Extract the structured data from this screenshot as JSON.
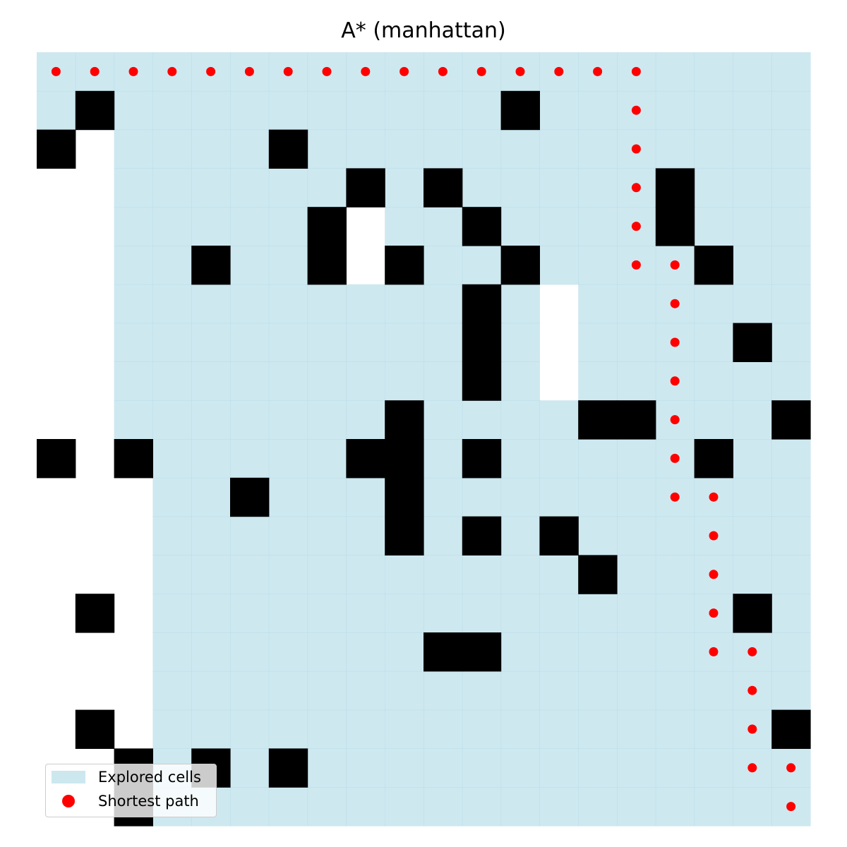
{
  "chart_data": {
    "type": "heatmap",
    "title": "A* (manhattan)",
    "grid_size": [
      20,
      20
    ],
    "axes_visible": false,
    "legend_location": "lower-left",
    "colors": {
      "explored": "#add8e6",
      "obstacle": "#000000",
      "path": "#ff0000",
      "free": "#ffffff"
    },
    "explored_columns_from_row": [
      {
        "rows": [
          0,
          0
        ],
        "from_col": 0
      },
      {
        "rows": [
          1,
          1
        ],
        "from_col": 0
      },
      {
        "rows": [
          2,
          9
        ],
        "from_col": 2
      },
      {
        "rows": [
          10,
          20
        ],
        "from_col": 3
      }
    ],
    "unexplored_cells": [
      [
        4,
        8
      ],
      [
        5,
        8
      ],
      [
        6,
        13
      ],
      [
        7,
        13
      ],
      [
        8,
        13
      ]
    ],
    "obstacles": [
      [
        1,
        1
      ],
      [
        1,
        12
      ],
      [
        2,
        0
      ],
      [
        2,
        6
      ],
      [
        3,
        8
      ],
      [
        3,
        10
      ],
      [
        3,
        16
      ],
      [
        4,
        7
      ],
      [
        4,
        11
      ],
      [
        4,
        16
      ],
      [
        5,
        4
      ],
      [
        5,
        7
      ],
      [
        5,
        9
      ],
      [
        5,
        12
      ],
      [
        5,
        17
      ],
      [
        6,
        11
      ],
      [
        7,
        11
      ],
      [
        7,
        18
      ],
      [
        8,
        11
      ],
      [
        9,
        9
      ],
      [
        9,
        14
      ],
      [
        9,
        15
      ],
      [
        9,
        19
      ],
      [
        10,
        0
      ],
      [
        10,
        2
      ],
      [
        10,
        8
      ],
      [
        10,
        9
      ],
      [
        10,
        11
      ],
      [
        10,
        17
      ],
      [
        11,
        5
      ],
      [
        11,
        9
      ],
      [
        12,
        9
      ],
      [
        12,
        11
      ],
      [
        12,
        13
      ],
      [
        13,
        14
      ],
      [
        14,
        1
      ],
      [
        14,
        18
      ],
      [
        15,
        10
      ],
      [
        15,
        11
      ],
      [
        17,
        1
      ],
      [
        17,
        19
      ],
      [
        18,
        2
      ],
      [
        18,
        4
      ],
      [
        18,
        6
      ],
      [
        19,
        2
      ]
    ],
    "path": [
      [
        0,
        0
      ],
      [
        0,
        1
      ],
      [
        0,
        2
      ],
      [
        0,
        3
      ],
      [
        0,
        4
      ],
      [
        0,
        5
      ],
      [
        0,
        6
      ],
      [
        0,
        7
      ],
      [
        0,
        8
      ],
      [
        0,
        9
      ],
      [
        0,
        10
      ],
      [
        0,
        11
      ],
      [
        0,
        12
      ],
      [
        0,
        13
      ],
      [
        0,
        14
      ],
      [
        0,
        15
      ],
      [
        1,
        15
      ],
      [
        2,
        15
      ],
      [
        3,
        15
      ],
      [
        4,
        15
      ],
      [
        5,
        15
      ],
      [
        5,
        16
      ],
      [
        6,
        16
      ],
      [
        7,
        16
      ],
      [
        8,
        16
      ],
      [
        9,
        16
      ],
      [
        10,
        16
      ],
      [
        11,
        16
      ],
      [
        11,
        17
      ],
      [
        12,
        17
      ],
      [
        13,
        17
      ],
      [
        14,
        17
      ],
      [
        15,
        17
      ],
      [
        15,
        18
      ],
      [
        16,
        18
      ],
      [
        17,
        18
      ],
      [
        18,
        18
      ],
      [
        18,
        19
      ],
      [
        19,
        19
      ]
    ],
    "legend": [
      {
        "label": "Explored cells",
        "kind": "box"
      },
      {
        "label": "Shortest path",
        "kind": "dot"
      }
    ]
  }
}
